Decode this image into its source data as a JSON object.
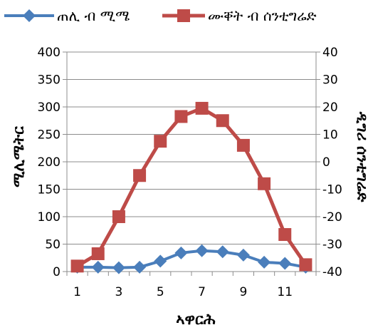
{
  "chart_data": {
    "type": "line",
    "title": "",
    "xlabel": "ኣዋርሕ",
    "ylabel_left": "ሚሊሜትር",
    "ylabel_right": "ዲግሪ ሰንቲግሬድ",
    "x": [
      1,
      2,
      3,
      4,
      5,
      6,
      7,
      8,
      9,
      10,
      11,
      12
    ],
    "x_tick_labels": [
      "1",
      "3",
      "5",
      "7",
      "9",
      "11"
    ],
    "x_tick_values": [
      1,
      3,
      5,
      7,
      9,
      11
    ],
    "ylim_left": [
      0,
      400
    ],
    "yticks_left": [
      0,
      50,
      100,
      150,
      200,
      250,
      300,
      350,
      400
    ],
    "ylim_right": [
      -40,
      40
    ],
    "yticks_right": [
      -40,
      -30,
      -20,
      -10,
      0,
      10,
      20,
      30,
      40
    ],
    "grid": "horizontal",
    "legend_position": "top",
    "series": [
      {
        "name": "ጠሊ ብ ሚሜ",
        "axis": "left",
        "color": "#4a7ebb",
        "marker": "diamond",
        "values": [
          8,
          8,
          7,
          8,
          19,
          34,
          38,
          36,
          30,
          17,
          15,
          8
        ]
      },
      {
        "name": "ሙቐት ብ ሰንቲግሬድ",
        "axis": "right",
        "color": "#be4b48",
        "marker": "square",
        "values": [
          -38,
          -33.5,
          -20,
          -5,
          7.5,
          16.5,
          19.5,
          15,
          6,
          -8,
          -26.5,
          -37.5
        ]
      }
    ]
  }
}
